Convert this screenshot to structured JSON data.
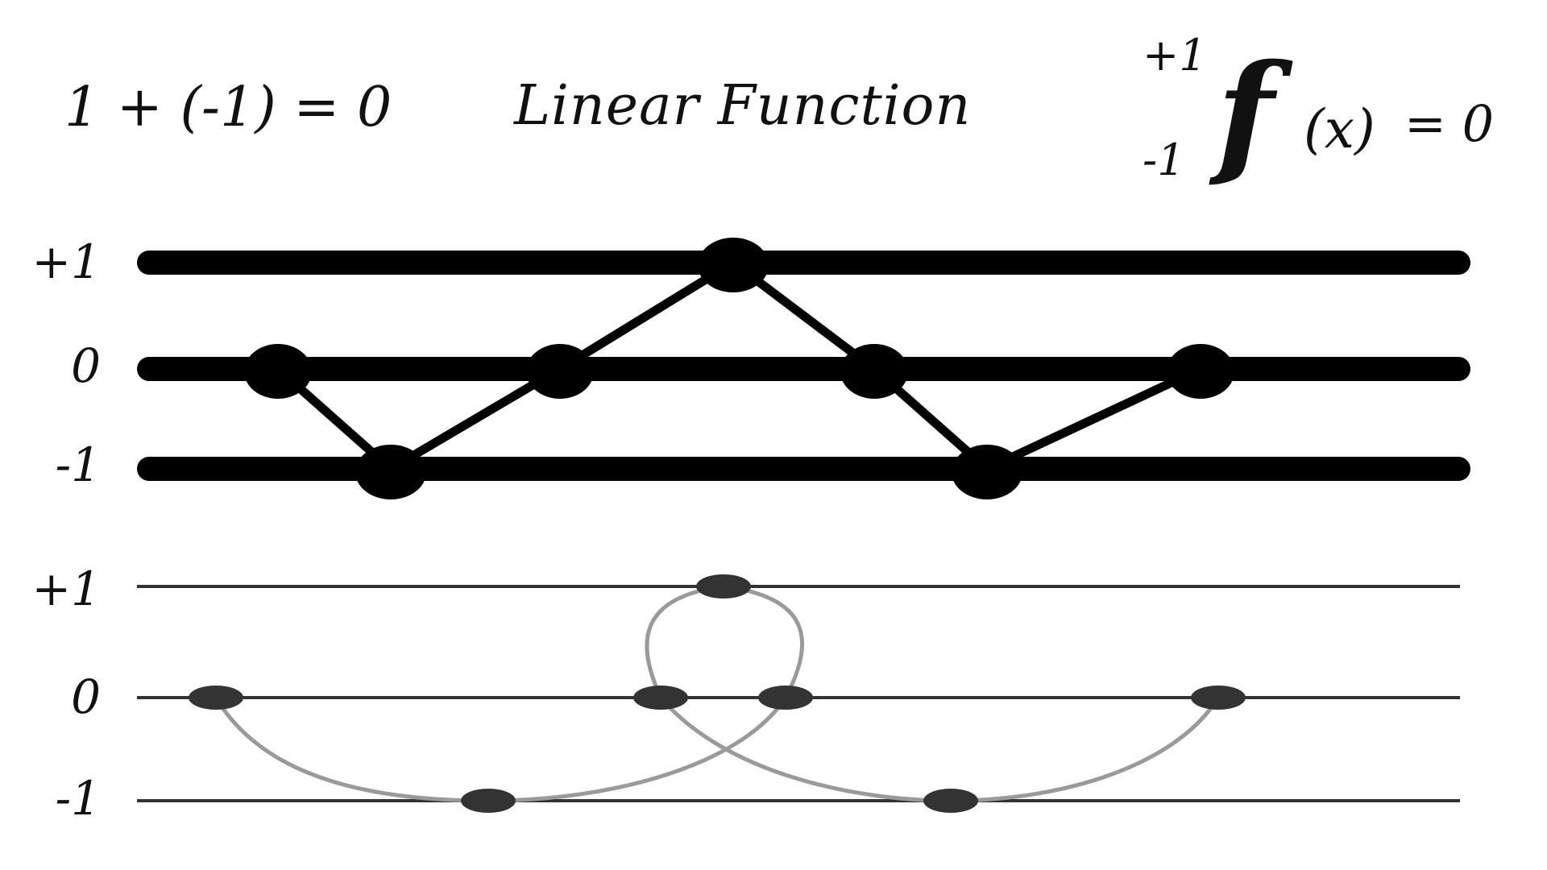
{
  "header": {
    "equation": "1 + (-1) = 0",
    "title": "Linear Function"
  },
  "formula": {
    "upper_limit": "+1",
    "lower_limit": "-1",
    "function_symbol": "f",
    "argument": "(x)",
    "result": "= 0"
  },
  "top_panel": {
    "levels": [
      {
        "label": "+1",
        "value": 1
      },
      {
        "label": "0",
        "value": 0
      },
      {
        "label": "-1",
        "value": -1
      }
    ],
    "path_values": [
      0,
      -1,
      0,
      1,
      0,
      -1,
      0
    ]
  },
  "bottom_panel": {
    "levels": [
      {
        "label": "+1",
        "value": 1
      },
      {
        "label": "0",
        "value": 0
      },
      {
        "label": "-1",
        "value": -1
      }
    ],
    "node_values": [
      0,
      -1,
      0,
      1,
      0,
      -1,
      0
    ]
  },
  "colors": {
    "top_lines": "#000000",
    "bottom_lines": "#333333",
    "bottom_nodes": "#333333",
    "bottom_curves": "#9a9a9a"
  }
}
